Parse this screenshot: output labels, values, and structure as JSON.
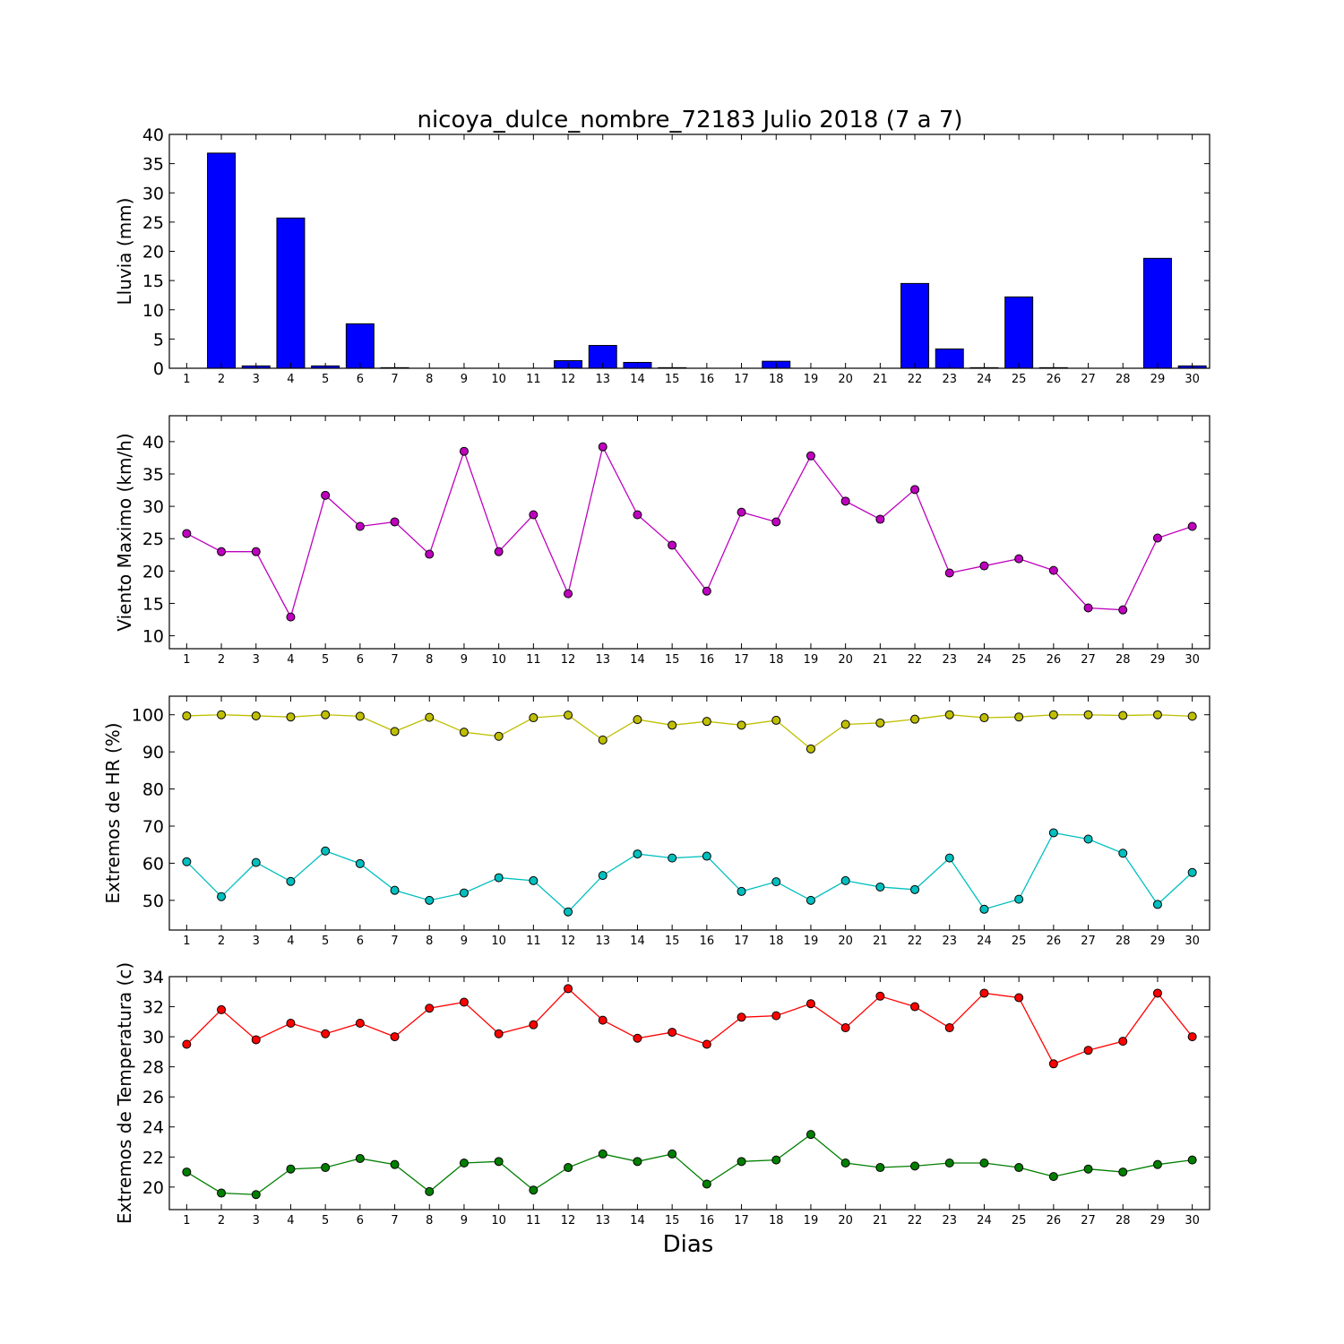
{
  "figure": {
    "title": "nicoya_dulce_nombre_72183 Julio 2018  (7 a 7)",
    "xlabel": "Dias"
  },
  "chart_data": [
    {
      "type": "bar",
      "ylabel": "Lluvia (mm)",
      "ylim": [
        0,
        40
      ],
      "yticks": [
        0,
        5,
        10,
        15,
        20,
        25,
        30,
        35,
        40
      ],
      "xlim": [
        0.5,
        30.5
      ],
      "categories": [
        1,
        2,
        3,
        4,
        5,
        6,
        7,
        8,
        9,
        10,
        11,
        12,
        13,
        14,
        15,
        16,
        17,
        18,
        19,
        20,
        21,
        22,
        23,
        24,
        25,
        26,
        27,
        28,
        29,
        30
      ],
      "series": [
        {
          "color": "#0000ff",
          "values": [
            0,
            36.8,
            0.4,
            25.7,
            0.4,
            7.6,
            0.1,
            0,
            0,
            0,
            0,
            1.3,
            3.9,
            1.0,
            0.1,
            0,
            0,
            1.2,
            0,
            0,
            0,
            14.5,
            3.3,
            0.1,
            12.2,
            0.1,
            0,
            0,
            18.8,
            0.4
          ]
        }
      ]
    },
    {
      "type": "line",
      "ylabel": "Viento Maximo (km/h)",
      "ylim": [
        8,
        44
      ],
      "yticks": [
        10,
        15,
        20,
        25,
        30,
        35,
        40
      ],
      "xlim": [
        0.5,
        30.5
      ],
      "x": [
        1,
        2,
        3,
        4,
        5,
        6,
        7,
        8,
        9,
        10,
        11,
        12,
        13,
        14,
        15,
        16,
        17,
        18,
        19,
        20,
        21,
        22,
        23,
        24,
        25,
        26,
        27,
        28,
        29,
        30
      ],
      "series": [
        {
          "color": "#bf00bf",
          "values": [
            25.8,
            23.0,
            23.0,
            12.9,
            31.7,
            26.9,
            27.6,
            22.6,
            38.5,
            23.0,
            28.7,
            16.5,
            39.2,
            28.7,
            24.0,
            16.9,
            29.1,
            27.6,
            37.8,
            30.8,
            28.0,
            32.6,
            19.7,
            20.8,
            21.9,
            20.1,
            14.3,
            14.0,
            25.1,
            26.9
          ]
        }
      ]
    },
    {
      "type": "line",
      "ylabel": "Extremos de HR (%)",
      "ylim": [
        42,
        105
      ],
      "yticks": [
        50,
        60,
        70,
        80,
        90,
        100
      ],
      "xlim": [
        0.5,
        30.5
      ],
      "x": [
        1,
        2,
        3,
        4,
        5,
        6,
        7,
        8,
        9,
        10,
        11,
        12,
        13,
        14,
        15,
        16,
        17,
        18,
        19,
        20,
        21,
        22,
        23,
        24,
        25,
        26,
        27,
        28,
        29,
        30
      ],
      "series": [
        {
          "color": "#bfbf00",
          "values": [
            99.7,
            100.0,
            99.7,
            99.4,
            100.0,
            99.6,
            95.5,
            99.3,
            95.3,
            94.2,
            99.2,
            99.9,
            93.2,
            98.7,
            97.2,
            98.2,
            97.2,
            98.5,
            90.8,
            97.4,
            97.8,
            98.8,
            100.0,
            99.2,
            99.4,
            100.0,
            100.0,
            99.8,
            100.0,
            99.6
          ]
        },
        {
          "color": "#00bfbf",
          "values": [
            60.4,
            51.0,
            60.2,
            55.1,
            63.3,
            59.9,
            52.7,
            50.0,
            52.0,
            56.1,
            55.3,
            46.9,
            56.7,
            62.5,
            61.4,
            61.9,
            52.4,
            55.0,
            50.0,
            55.3,
            53.6,
            52.9,
            61.4,
            47.6,
            50.3,
            68.2,
            66.5,
            62.7,
            48.9,
            57.5
          ]
        }
      ]
    },
    {
      "type": "line",
      "ylabel": "Extremos de Temperatura (c)",
      "ylim": [
        18.5,
        34
      ],
      "yticks": [
        20,
        22,
        24,
        26,
        28,
        30,
        32,
        34
      ],
      "xlim": [
        0.5,
        30.5
      ],
      "x": [
        1,
        2,
        3,
        4,
        5,
        6,
        7,
        8,
        9,
        10,
        11,
        12,
        13,
        14,
        15,
        16,
        17,
        18,
        19,
        20,
        21,
        22,
        23,
        24,
        25,
        26,
        27,
        28,
        29,
        30
      ],
      "series": [
        {
          "color": "#ff0000",
          "values": [
            29.5,
            31.8,
            29.8,
            30.9,
            30.2,
            30.9,
            30.0,
            31.9,
            32.3,
            30.2,
            30.8,
            33.2,
            31.1,
            29.9,
            30.3,
            29.5,
            31.3,
            31.4,
            32.2,
            30.6,
            32.7,
            32.0,
            30.6,
            32.9,
            32.6,
            28.2,
            29.1,
            29.7,
            32.9,
            30.0
          ]
        },
        {
          "color": "#007f00",
          "values": [
            21.0,
            19.6,
            19.5,
            21.2,
            21.3,
            21.9,
            21.5,
            19.7,
            21.6,
            21.7,
            19.8,
            21.3,
            22.2,
            21.7,
            22.2,
            20.2,
            21.7,
            21.8,
            23.5,
            21.6,
            21.3,
            21.4,
            21.6,
            21.6,
            21.3,
            20.7,
            21.2,
            21.0,
            21.5,
            21.8
          ]
        }
      ]
    }
  ]
}
